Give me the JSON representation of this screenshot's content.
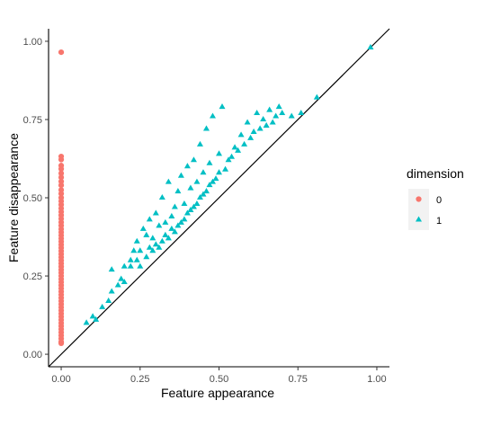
{
  "chart_data": {
    "type": "scatter",
    "title": "",
    "xlabel": "Feature appearance",
    "ylabel": "Feature disappearance",
    "xlim": [
      -0.04,
      1.04
    ],
    "ylim": [
      -0.04,
      1.04
    ],
    "x_ticks": [
      "0.00",
      "0.25",
      "0.50",
      "0.75",
      "1.00"
    ],
    "y_ticks": [
      "0.00",
      "0.25",
      "0.50",
      "0.75",
      "1.00"
    ],
    "grid": false,
    "reference_line": {
      "type": "diagonal",
      "slope": 1,
      "intercept": 0,
      "color": "#000000"
    },
    "legend": {
      "title": "dimension",
      "position": "right",
      "entries": [
        {
          "label": "0",
          "shape": "circle",
          "color": "#F8766D"
        },
        {
          "label": "1",
          "shape": "triangle",
          "color": "#00BFC4"
        }
      ]
    },
    "series": [
      {
        "name": "0",
        "shape": "circle",
        "color": "#F8766D",
        "points": [
          [
            0,
            0.965
          ],
          [
            0,
            0.632
          ],
          [
            0,
            0.622
          ],
          [
            0,
            0.603
          ],
          [
            0,
            0.592
          ],
          [
            0,
            0.578
          ],
          [
            0,
            0.565
          ],
          [
            0,
            0.552
          ],
          [
            0,
            0.54
          ],
          [
            0,
            0.525
          ],
          [
            0,
            0.513
          ],
          [
            0,
            0.5
          ],
          [
            0,
            0.489
          ],
          [
            0,
            0.478
          ],
          [
            0,
            0.466
          ],
          [
            0,
            0.455
          ],
          [
            0,
            0.444
          ],
          [
            0,
            0.433
          ],
          [
            0,
            0.422
          ],
          [
            0,
            0.411
          ],
          [
            0,
            0.4
          ],
          [
            0,
            0.39
          ],
          [
            0,
            0.38
          ],
          [
            0,
            0.37
          ],
          [
            0,
            0.36
          ],
          [
            0,
            0.35
          ],
          [
            0,
            0.34
          ],
          [
            0,
            0.33
          ],
          [
            0,
            0.32
          ],
          [
            0,
            0.31
          ],
          [
            0,
            0.3
          ],
          [
            0,
            0.29
          ],
          [
            0,
            0.28
          ],
          [
            0,
            0.27
          ],
          [
            0,
            0.26
          ],
          [
            0,
            0.25
          ],
          [
            0,
            0.24
          ],
          [
            0,
            0.23
          ],
          [
            0,
            0.22
          ],
          [
            0,
            0.21
          ],
          [
            0,
            0.2
          ],
          [
            0,
            0.19
          ],
          [
            0,
            0.18
          ],
          [
            0,
            0.17
          ],
          [
            0,
            0.16
          ],
          [
            0,
            0.15
          ],
          [
            0,
            0.14
          ],
          [
            0,
            0.13
          ],
          [
            0,
            0.12
          ],
          [
            0,
            0.11
          ],
          [
            0,
            0.1
          ],
          [
            0,
            0.09
          ],
          [
            0,
            0.08
          ],
          [
            0,
            0.07
          ],
          [
            0,
            0.06
          ],
          [
            0,
            0.05
          ],
          [
            0,
            0.04
          ],
          [
            0,
            0.035
          ]
        ]
      },
      {
        "name": "1",
        "shape": "triangle",
        "color": "#00BFC4",
        "points": [
          [
            0.08,
            0.1
          ],
          [
            0.1,
            0.12
          ],
          [
            0.11,
            0.11
          ],
          [
            0.13,
            0.15
          ],
          [
            0.15,
            0.17
          ],
          [
            0.16,
            0.2
          ],
          [
            0.16,
            0.27
          ],
          [
            0.18,
            0.22
          ],
          [
            0.19,
            0.24
          ],
          [
            0.2,
            0.23
          ],
          [
            0.2,
            0.28
          ],
          [
            0.22,
            0.28
          ],
          [
            0.22,
            0.3
          ],
          [
            0.23,
            0.33
          ],
          [
            0.24,
            0.3
          ],
          [
            0.24,
            0.36
          ],
          [
            0.25,
            0.28
          ],
          [
            0.25,
            0.33
          ],
          [
            0.26,
            0.4
          ],
          [
            0.27,
            0.31
          ],
          [
            0.27,
            0.38
          ],
          [
            0.28,
            0.34
          ],
          [
            0.28,
            0.43
          ],
          [
            0.29,
            0.33
          ],
          [
            0.29,
            0.37
          ],
          [
            0.3,
            0.35
          ],
          [
            0.3,
            0.45
          ],
          [
            0.31,
            0.34
          ],
          [
            0.31,
            0.41
          ],
          [
            0.32,
            0.36
          ],
          [
            0.32,
            0.5
          ],
          [
            0.33,
            0.38
          ],
          [
            0.33,
            0.42
          ],
          [
            0.34,
            0.37
          ],
          [
            0.34,
            0.55
          ],
          [
            0.35,
            0.4
          ],
          [
            0.35,
            0.44
          ],
          [
            0.36,
            0.39
          ],
          [
            0.36,
            0.47
          ],
          [
            0.37,
            0.41
          ],
          [
            0.37,
            0.52
          ],
          [
            0.38,
            0.42
          ],
          [
            0.38,
            0.57
          ],
          [
            0.39,
            0.43
          ],
          [
            0.39,
            0.48
          ],
          [
            0.4,
            0.45
          ],
          [
            0.4,
            0.6
          ],
          [
            0.41,
            0.46
          ],
          [
            0.41,
            0.53
          ],
          [
            0.42,
            0.47
          ],
          [
            0.42,
            0.62
          ],
          [
            0.43,
            0.48
          ],
          [
            0.43,
            0.55
          ],
          [
            0.44,
            0.5
          ],
          [
            0.44,
            0.67
          ],
          [
            0.45,
            0.51
          ],
          [
            0.45,
            0.58
          ],
          [
            0.46,
            0.52
          ],
          [
            0.46,
            0.72
          ],
          [
            0.47,
            0.54
          ],
          [
            0.47,
            0.61
          ],
          [
            0.48,
            0.55
          ],
          [
            0.48,
            0.76
          ],
          [
            0.49,
            0.56
          ],
          [
            0.5,
            0.58
          ],
          [
            0.5,
            0.64
          ],
          [
            0.51,
            0.79
          ],
          [
            0.52,
            0.59
          ],
          [
            0.53,
            0.62
          ],
          [
            0.54,
            0.63
          ],
          [
            0.55,
            0.66
          ],
          [
            0.56,
            0.65
          ],
          [
            0.57,
            0.7
          ],
          [
            0.58,
            0.67
          ],
          [
            0.59,
            0.74
          ],
          [
            0.6,
            0.69
          ],
          [
            0.61,
            0.71
          ],
          [
            0.62,
            0.77
          ],
          [
            0.63,
            0.72
          ],
          [
            0.64,
            0.75
          ],
          [
            0.65,
            0.73
          ],
          [
            0.66,
            0.78
          ],
          [
            0.67,
            0.74
          ],
          [
            0.68,
            0.76
          ],
          [
            0.69,
            0.79
          ],
          [
            0.7,
            0.77
          ],
          [
            0.73,
            0.76
          ],
          [
            0.76,
            0.77
          ],
          [
            0.81,
            0.82
          ],
          [
            0.98,
            0.98
          ]
        ]
      }
    ]
  }
}
